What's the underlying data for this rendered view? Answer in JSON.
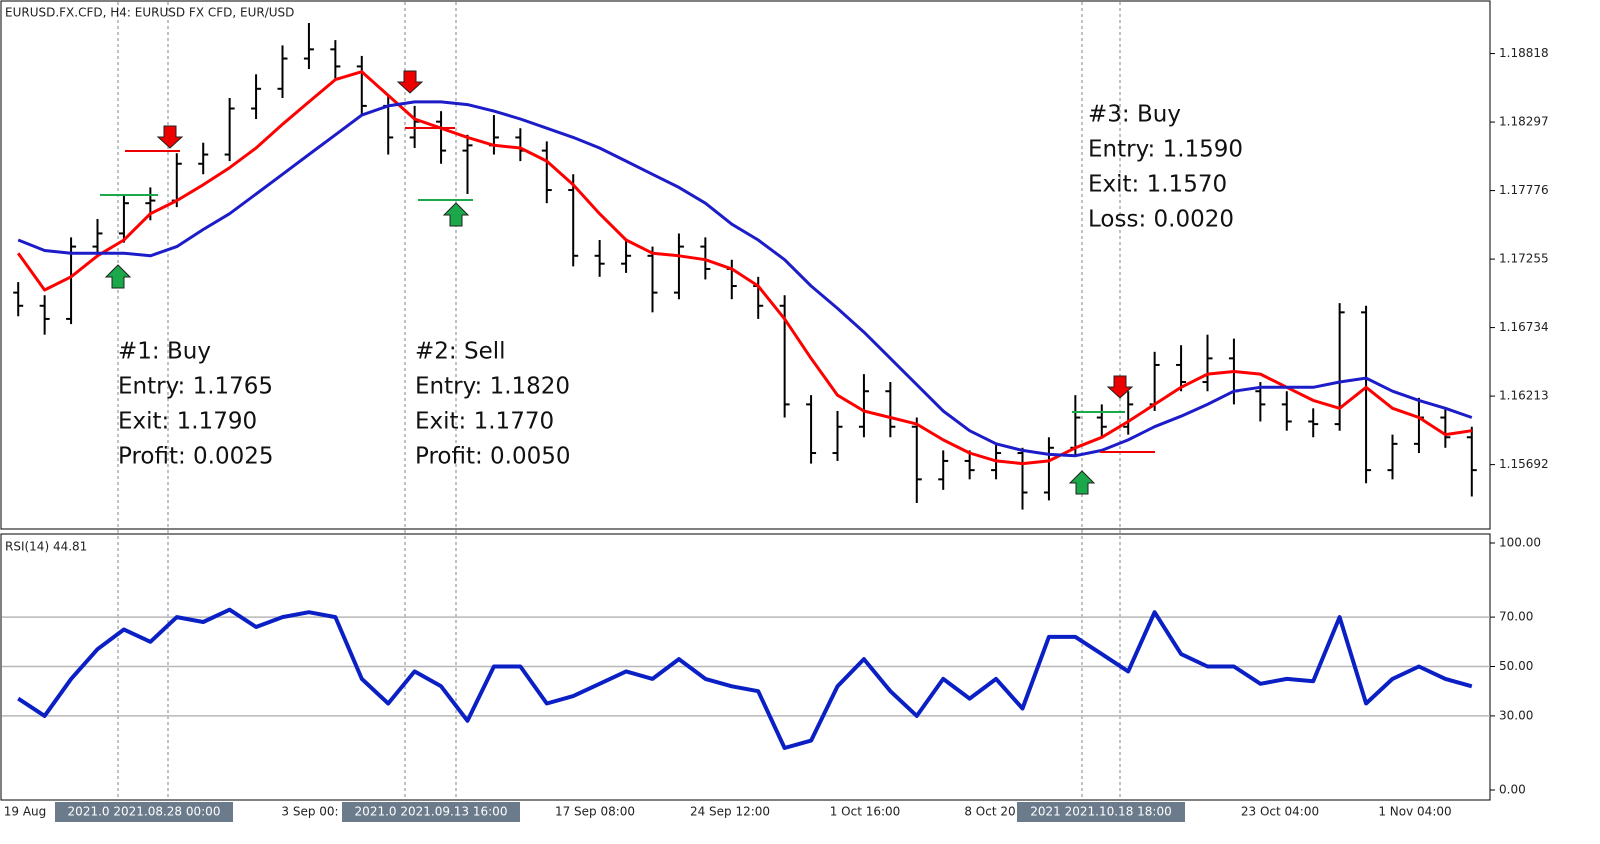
{
  "chart_data": [
    {
      "type": "candlestick",
      "title": "EURUSD.FX.CFD, H4:  EURUSD FX CFD, EUR/USD",
      "open": [
        1.17,
        1.169,
        1.168,
        1.1735,
        1.1745,
        1.1768,
        1.177,
        1.1798,
        1.1805,
        1.184,
        1.1855,
        1.1878,
        1.1885,
        1.1872,
        1.1842,
        1.1818,
        1.183,
        1.1808,
        1.1812,
        1.1818,
        1.1808,
        1.1778,
        1.1728,
        1.1722,
        1.1728,
        1.17,
        1.1735,
        1.1718,
        1.1705,
        1.169,
        1.1615,
        1.1578,
        1.1598,
        1.1625,
        1.1598,
        1.1558,
        1.1572,
        1.1565,
        1.1578,
        1.1548,
        1.1582,
        1.1605,
        1.1598,
        1.1615,
        1.1645,
        1.1632,
        1.165,
        1.1625,
        1.1615,
        1.1602,
        1.16,
        1.1685,
        1.1565,
        1.1585,
        1.1605,
        1.159
      ],
      "high": [
        1.1708,
        1.1698,
        1.1742,
        1.1756,
        1.1775,
        1.178,
        1.1806,
        1.1814,
        1.1848,
        1.1866,
        1.1888,
        1.1905,
        1.1892,
        1.188,
        1.185,
        1.1842,
        1.1838,
        1.182,
        1.1835,
        1.1825,
        1.1815,
        1.179,
        1.174,
        1.174,
        1.1735,
        1.1745,
        1.1742,
        1.1725,
        1.1712,
        1.1698,
        1.1622,
        1.161,
        1.1638,
        1.1632,
        1.1605,
        1.158,
        1.158,
        1.1585,
        1.1582,
        1.159,
        1.1622,
        1.1615,
        1.1625,
        1.1655,
        1.166,
        1.1668,
        1.1665,
        1.1632,
        1.1625,
        1.1612,
        1.1692,
        1.169,
        1.1592,
        1.162,
        1.1612,
        1.1598
      ],
      "low": [
        1.1682,
        1.1668,
        1.1676,
        1.1728,
        1.1738,
        1.1755,
        1.1765,
        1.179,
        1.18,
        1.1832,
        1.1848,
        1.187,
        1.1862,
        1.1835,
        1.1805,
        1.181,
        1.1798,
        1.1775,
        1.1805,
        1.18,
        1.1768,
        1.172,
        1.1712,
        1.1715,
        1.1685,
        1.1695,
        1.171,
        1.1695,
        1.168,
        1.1605,
        1.157,
        1.1572,
        1.159,
        1.159,
        1.154,
        1.155,
        1.1558,
        1.1558,
        1.1535,
        1.1542,
        1.1575,
        1.159,
        1.1592,
        1.161,
        1.1625,
        1.1625,
        1.1615,
        1.1602,
        1.1595,
        1.159,
        1.1595,
        1.1555,
        1.1558,
        1.1578,
        1.1582,
        1.1545
      ],
      "close": [
        1.169,
        1.168,
        1.1735,
        1.1745,
        1.1768,
        1.177,
        1.1798,
        1.1805,
        1.184,
        1.1855,
        1.1878,
        1.1885,
        1.1872,
        1.1842,
        1.1818,
        1.183,
        1.1808,
        1.1812,
        1.1818,
        1.1808,
        1.1778,
        1.1728,
        1.1722,
        1.1728,
        1.17,
        1.1735,
        1.1718,
        1.1705,
        1.169,
        1.1615,
        1.1578,
        1.1598,
        1.1625,
        1.1598,
        1.1558,
        1.1572,
        1.1565,
        1.1578,
        1.1548,
        1.1582,
        1.1605,
        1.1598,
        1.1615,
        1.1645,
        1.1632,
        1.165,
        1.1625,
        1.1615,
        1.1602,
        1.16,
        1.1685,
        1.1565,
        1.1585,
        1.1605,
        1.159,
        1.1565
      ],
      "bar_color": "#000000",
      "moving_averages": [
        {
          "color": "#ff0000",
          "values": [
            1.173,
            1.1702,
            1.1712,
            1.1728,
            1.174,
            1.176,
            1.177,
            1.1782,
            1.1795,
            1.181,
            1.1828,
            1.1845,
            1.1862,
            1.1868,
            1.185,
            1.1832,
            1.1825,
            1.1818,
            1.1812,
            1.181,
            1.18,
            1.1782,
            1.176,
            1.174,
            1.173,
            1.1728,
            1.1725,
            1.1718,
            1.1705,
            1.168,
            1.165,
            1.1622,
            1.161,
            1.1605,
            1.16,
            1.1588,
            1.1578,
            1.1572,
            1.157,
            1.1572,
            1.1582,
            1.159,
            1.1602,
            1.1615,
            1.1628,
            1.1638,
            1.164,
            1.1638,
            1.1628,
            1.1618,
            1.1612,
            1.1628,
            1.1612,
            1.1605,
            1.1592,
            1.1595
          ]
        },
        {
          "color": "#1c1cc8",
          "values": [
            1.174,
            1.1732,
            1.173,
            1.173,
            1.173,
            1.1728,
            1.1735,
            1.1748,
            1.176,
            1.1775,
            1.179,
            1.1805,
            1.182,
            1.1835,
            1.1842,
            1.1845,
            1.1845,
            1.1843,
            1.1838,
            1.1832,
            1.1825,
            1.1818,
            1.181,
            1.18,
            1.179,
            1.178,
            1.1768,
            1.1752,
            1.174,
            1.1725,
            1.1705,
            1.1688,
            1.167,
            1.165,
            1.163,
            1.161,
            1.1595,
            1.1585,
            1.158,
            1.1577,
            1.1576,
            1.158,
            1.1588,
            1.1598,
            1.1606,
            1.1615,
            1.1625,
            1.1628,
            1.1628,
            1.1628,
            1.1632,
            1.1635,
            1.1625,
            1.1618,
            1.1612,
            1.1605
          ]
        }
      ],
      "ylim": [
        1.1521,
        1.1921
      ],
      "yticks": [
        1.18818,
        1.18297,
        1.17776,
        1.17255,
        1.16734,
        1.16213,
        1.15692
      ],
      "grid": false,
      "annotations": [
        {
          "lines": [
            "#1: Buy",
            "Entry: 1.1765",
            "Exit: 1.1790",
            "Profit: 0.0025"
          ]
        },
        {
          "lines": [
            "#2: Sell",
            "Entry: 1.1820",
            "Exit: 1.1770",
            "Profit: 0.0050"
          ]
        },
        {
          "lines": [
            "#3: Buy",
            "Entry: 1.1590",
            "Exit: 1.1570",
            "Loss: 0.0020"
          ]
        }
      ]
    },
    {
      "type": "line",
      "title": "RSI(14) 44.81",
      "color": "#0a1fc4",
      "values": [
        37,
        30,
        45,
        57,
        65,
        60,
        70,
        68,
        73,
        66,
        70,
        72,
        70,
        45,
        35,
        48,
        42,
        28,
        50,
        50,
        35,
        38,
        43,
        48,
        45,
        53,
        45,
        42,
        40,
        17,
        20,
        42,
        53,
        40,
        30,
        45,
        37,
        45,
        33,
        62,
        62,
        55,
        48,
        72,
        55,
        50,
        50,
        43,
        45,
        44,
        70,
        35,
        45,
        50,
        45,
        42
      ],
      "ylim": [
        0,
        100
      ],
      "yticks": [
        {
          "value": 100,
          "label": "100.00"
        },
        {
          "value": 70,
          "label": "70.00"
        },
        {
          "value": 50,
          "label": "50.00"
        },
        {
          "value": 30,
          "label": "30.00"
        },
        {
          "value": 0,
          "label": "0.00"
        }
      ],
      "grid": true,
      "x_labels": [
        "19 Aug",
        "3 Sep 00:",
        "17 Sep 08:00",
        "24 Sep 12:00",
        "1 Oct 16:00",
        "8 Oct 20",
        "23 Oct 04:00",
        "1 Nov 04:00"
      ],
      "cursor_labels": [
        "2021.0 2021.08.28 00:00",
        "2021.0 2021.09.13 16:00",
        "2021 2021.10.18 18:00"
      ]
    }
  ]
}
